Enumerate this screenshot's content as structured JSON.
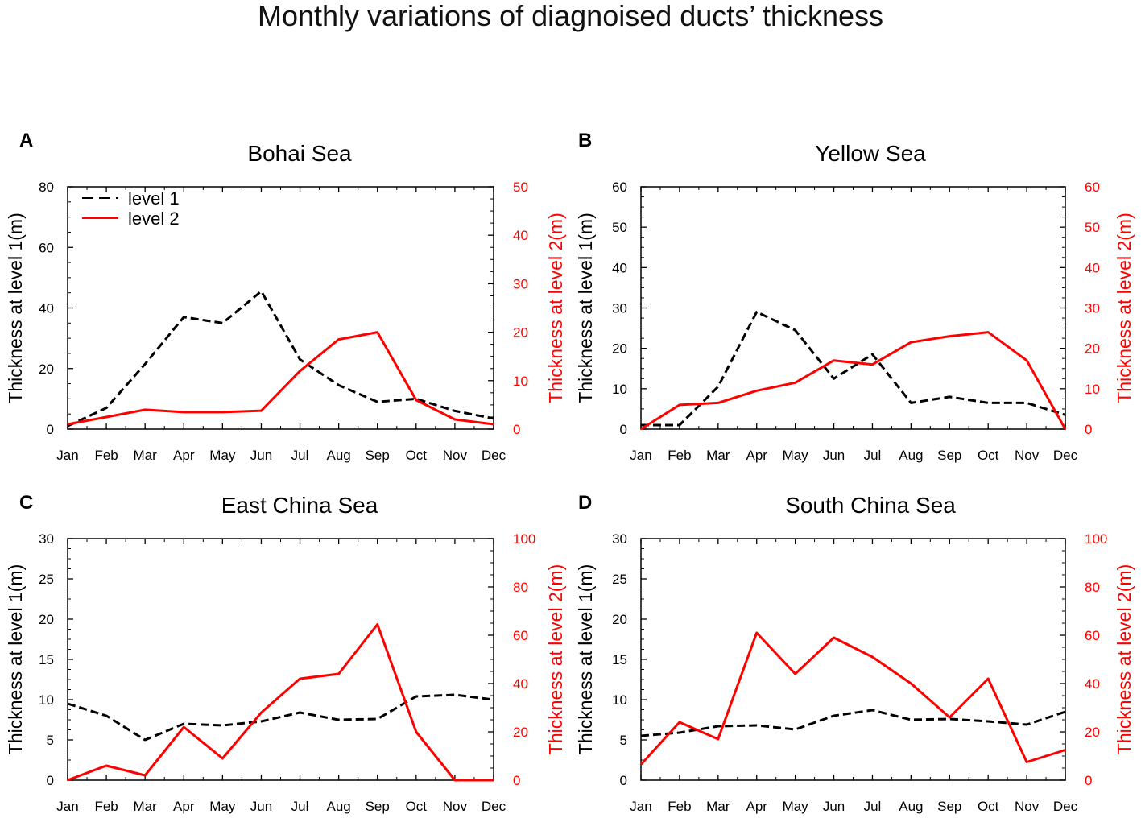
{
  "figure_title": "Monthly variations of diagnoised ducts’ thickness",
  "legend": {
    "entries": [
      "level 1",
      "level 2"
    ]
  },
  "colors": {
    "level1": "#000000",
    "level2": "#ff0000",
    "axis": "#000000"
  },
  "chart_data": [
    {
      "letter": "A",
      "type": "line",
      "title": "Bohai Sea",
      "categories": [
        "Jan",
        "Feb",
        "Mar",
        "Apr",
        "May",
        "Jun",
        "Jul",
        "Aug",
        "Sep",
        "Oct",
        "Nov",
        "Dec"
      ],
      "ylabel_left": "Thickness at level 1(m)",
      "ylabel_right": "Thickness at level 2(m)",
      "ylim_left": [
        0,
        80
      ],
      "yticks_left": [
        0,
        20,
        40,
        60,
        80
      ],
      "ylim_right": [
        0,
        50
      ],
      "yticks_right": [
        0,
        10,
        20,
        30,
        40,
        50
      ],
      "series": [
        {
          "name": "level 1",
          "axis": "left",
          "style": "dashed",
          "values": [
            1,
            7,
            21.5,
            37,
            35,
            45.5,
            23,
            14.5,
            9,
            10,
            6,
            3.5
          ]
        },
        {
          "name": "level 2",
          "axis": "right",
          "style": "solid",
          "values": [
            1,
            2.5,
            4,
            3.5,
            3.5,
            3.8,
            12,
            18.5,
            20,
            6,
            2,
            1
          ]
        }
      ],
      "legend": "top-left"
    },
    {
      "letter": "B",
      "type": "line",
      "title": "Yellow Sea",
      "categories": [
        "Jan",
        "Feb",
        "Mar",
        "Apr",
        "May",
        "Jun",
        "Jul",
        "Aug",
        "Sep",
        "Oct",
        "Nov",
        "Dec"
      ],
      "ylabel_left": "Thickness at level 1(m)",
      "ylabel_right": "Thickness at level 2(m)",
      "ylim_left": [
        0,
        60
      ],
      "yticks_left": [
        0,
        10,
        20,
        30,
        40,
        50,
        60
      ],
      "ylim_right": [
        0,
        60
      ],
      "yticks_right": [
        0,
        10,
        20,
        30,
        40,
        50,
        60
      ],
      "series": [
        {
          "name": "level 1",
          "axis": "left",
          "style": "dashed",
          "values": [
            1,
            1,
            10.5,
            29,
            24.5,
            12.5,
            18.5,
            6.5,
            8,
            6.5,
            6.5,
            3.5
          ]
        },
        {
          "name": "level 2",
          "axis": "right",
          "style": "solid",
          "values": [
            0,
            6,
            6.5,
            9.5,
            11.5,
            17,
            16,
            21.5,
            23,
            24,
            17,
            0
          ]
        }
      ]
    },
    {
      "letter": "C",
      "type": "line",
      "title": "East China Sea",
      "categories": [
        "Jan",
        "Feb",
        "Mar",
        "Apr",
        "May",
        "Jun",
        "Jul",
        "Aug",
        "Sep",
        "Oct",
        "Nov",
        "Dec"
      ],
      "ylabel_left": "Thickness at level 1(m)",
      "ylabel_right": "Thickness at level 2(m)",
      "ylim_left": [
        0,
        30
      ],
      "yticks_left": [
        0,
        5,
        10,
        15,
        20,
        25,
        30
      ],
      "ylim_right": [
        0,
        100
      ],
      "yticks_right": [
        0,
        20,
        40,
        60,
        80,
        100
      ],
      "series": [
        {
          "name": "level 1",
          "axis": "left",
          "style": "dashed",
          "values": [
            9.5,
            8,
            5,
            7,
            6.8,
            7.3,
            8.4,
            7.5,
            7.6,
            10.4,
            10.6,
            10
          ]
        },
        {
          "name": "level 2",
          "axis": "right",
          "style": "solid",
          "values": [
            0,
            6,
            2,
            22,
            9,
            28,
            42,
            44,
            64.5,
            20,
            0,
            0
          ]
        }
      ]
    },
    {
      "letter": "D",
      "type": "line",
      "title": "South China Sea",
      "categories": [
        "Jan",
        "Feb",
        "Mar",
        "Apr",
        "May",
        "Jun",
        "Jul",
        "Aug",
        "Sep",
        "Oct",
        "Nov",
        "Dec"
      ],
      "ylabel_left": "Thickness at level 1(m)",
      "ylabel_right": "Thickness at level 2(m)",
      "ylim_left": [
        0,
        30
      ],
      "yticks_left": [
        0,
        5,
        10,
        15,
        20,
        25,
        30
      ],
      "ylim_right": [
        0,
        100
      ],
      "yticks_right": [
        0,
        20,
        40,
        60,
        80,
        100
      ],
      "series": [
        {
          "name": "level 1",
          "axis": "left",
          "style": "dashed",
          "values": [
            5.5,
            5.9,
            6.7,
            6.8,
            6.3,
            8,
            8.7,
            7.5,
            7.6,
            7.3,
            6.9,
            8.5
          ]
        },
        {
          "name": "level 2",
          "axis": "right",
          "style": "solid",
          "values": [
            6.5,
            24,
            17,
            61,
            44,
            59,
            51,
            40,
            26,
            42,
            7.5,
            12.5
          ]
        }
      ]
    }
  ]
}
